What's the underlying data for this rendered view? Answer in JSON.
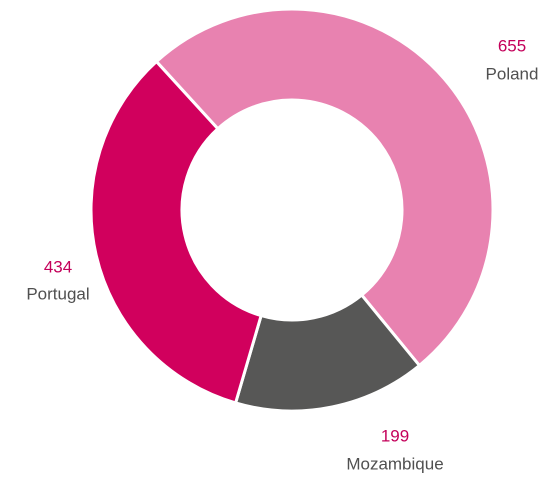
{
  "chart_data": {
    "type": "donut",
    "categories": [
      "Poland",
      "Mozambique",
      "Portugal"
    ],
    "values": [
      655,
      199,
      434
    ],
    "colors": [
      "#e882b0",
      "#575756",
      "#d1005d"
    ]
  }
}
